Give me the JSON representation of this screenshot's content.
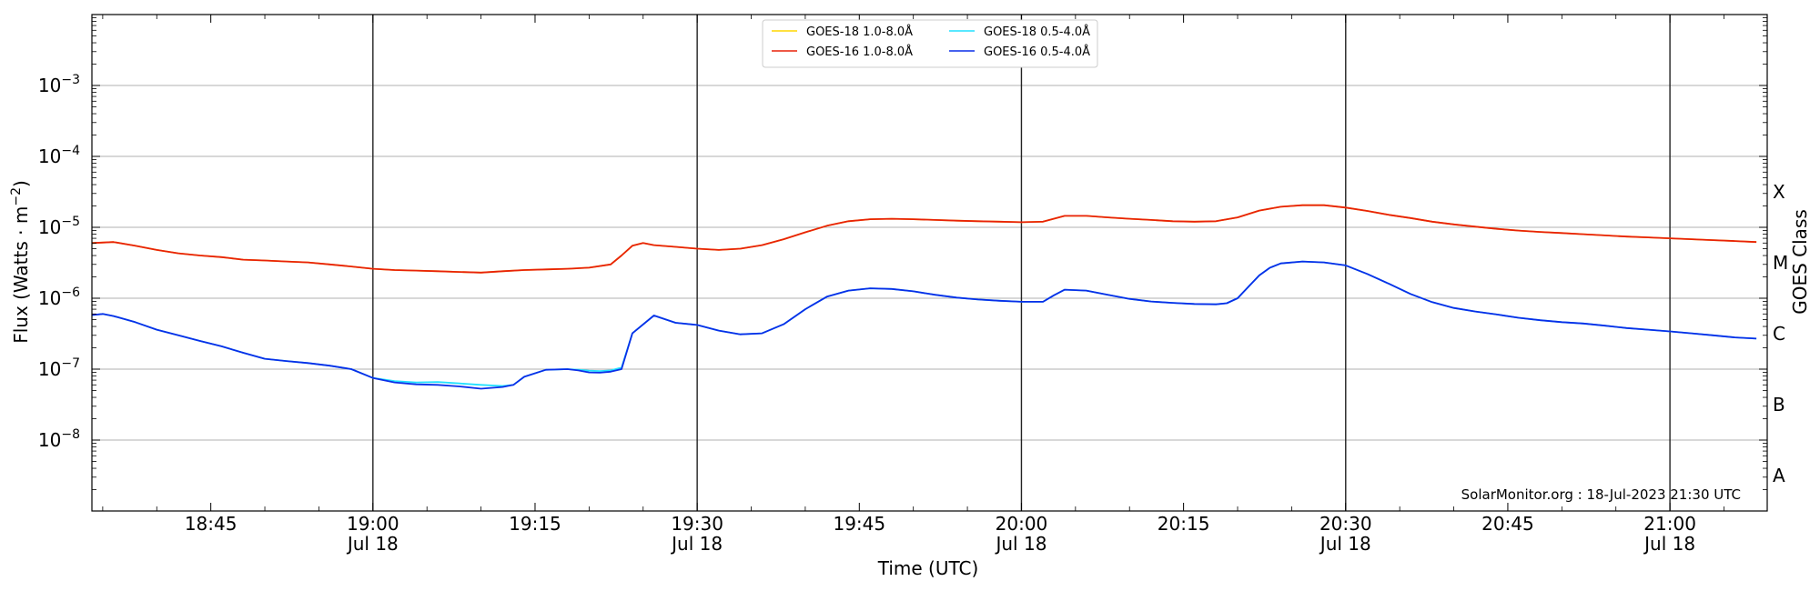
{
  "chart_data": {
    "type": "line",
    "xlabel": "Time (UTC)",
    "ylabel": "Flux (Watts · m",
    "ylabel_sup": "−2",
    "ylabel_close": ")",
    "y2label": "GOES Class",
    "yscale": "log",
    "ylim": [
      1e-09,
      0.01
    ],
    "xlim": [
      "18:34",
      "21:09"
    ],
    "x_ticks": [
      {
        "time": "18:45",
        "label": "18:45",
        "sub": ""
      },
      {
        "time": "19:00",
        "label": "19:00",
        "sub": "Jul 18"
      },
      {
        "time": "19:15",
        "label": "19:15",
        "sub": ""
      },
      {
        "time": "19:30",
        "label": "19:30",
        "sub": "Jul 18"
      },
      {
        "time": "19:45",
        "label": "19:45",
        "sub": ""
      },
      {
        "time": "20:00",
        "label": "20:00",
        "sub": "Jul 18"
      },
      {
        "time": "20:15",
        "label": "20:15",
        "sub": ""
      },
      {
        "time": "20:30",
        "label": "20:30",
        "sub": "Jul 18"
      },
      {
        "time": "20:45",
        "label": "20:45",
        "sub": ""
      },
      {
        "time": "21:00",
        "label": "21:00",
        "sub": "Jul 18"
      }
    ],
    "y_ticks": [
      {
        "exp": -8,
        "label": "10",
        "sup": "−8"
      },
      {
        "exp": -7,
        "label": "10",
        "sup": "−7"
      },
      {
        "exp": -6,
        "label": "10",
        "sup": "−6"
      },
      {
        "exp": -5,
        "label": "10",
        "sup": "−5"
      },
      {
        "exp": -4,
        "label": "10",
        "sup": "−4"
      },
      {
        "exp": -3,
        "label": "10",
        "sup": "−3"
      }
    ],
    "goes_classes": [
      {
        "label": "A",
        "flux": 1e-08
      },
      {
        "label": "B",
        "flux": 1e-07
      },
      {
        "label": "C",
        "flux": 1e-06
      },
      {
        "label": "M",
        "flux": 1e-05
      },
      {
        "label": "X",
        "flux": 0.0001
      }
    ],
    "vertical_lines": [
      "19:00",
      "19:30",
      "20:00",
      "20:30",
      "21:00"
    ],
    "grid": "horizontal",
    "legend_position": "top-center",
    "credit": "SolarMonitor.org : 18-Jul-2023 21:30 UTC",
    "series": [
      {
        "name": "GOES-18 1.0-8.0Å",
        "color": "#FFD700",
        "x": [
          "18:34",
          "18:36",
          "18:38",
          "18:40",
          "18:42",
          "18:44",
          "18:46",
          "18:48",
          "18:50",
          "18:52",
          "18:54",
          "18:56",
          "18:58",
          "19:00",
          "19:02",
          "19:04",
          "19:06",
          "19:08",
          "19:10",
          "19:12",
          "19:14",
          "19:16",
          "19:18",
          "19:20",
          "19:22",
          "19:23",
          "19:24",
          "19:25",
          "19:26",
          "19:28",
          "19:30",
          "19:32",
          "19:34",
          "19:36",
          "19:38",
          "19:40",
          "19:42",
          "19:44",
          "19:46",
          "19:48",
          "19:50",
          "19:52",
          "19:54",
          "19:56",
          "19:58",
          "20:00",
          "20:02",
          "20:04",
          "20:06",
          "20:08",
          "20:10",
          "20:12",
          "20:14",
          "20:16",
          "20:18",
          "20:20",
          "20:22",
          "20:24",
          "20:26",
          "20:28",
          "20:30",
          "20:32",
          "20:34",
          "20:36",
          "20:38",
          "20:40",
          "20:42",
          "20:44",
          "20:46",
          "20:48",
          "20:50",
          "20:52",
          "20:54",
          "20:56",
          "20:58",
          "21:00",
          "21:02",
          "21:04",
          "21:06",
          "21:08"
        ],
        "y": [
          6e-06,
          6.2e-06,
          5.5e-06,
          4.8e-06,
          4.3e-06,
          4e-06,
          3.8e-06,
          3.5e-06,
          3.4e-06,
          3.3e-06,
          3.2e-06,
          3e-06,
          2.8e-06,
          2.6e-06,
          2.5e-06,
          2.45e-06,
          2.4e-06,
          2.35e-06,
          2.3e-06,
          2.4e-06,
          2.5e-06,
          2.55e-06,
          2.6e-06,
          2.7e-06,
          3e-06,
          4e-06,
          5.5e-06,
          6e-06,
          5.6e-06,
          5.3e-06,
          5e-06,
          4.8e-06,
          5e-06,
          5.6e-06,
          6.8e-06,
          8.5e-06,
          1.05e-05,
          1.22e-05,
          1.3e-05,
          1.32e-05,
          1.3e-05,
          1.27e-05,
          1.24e-05,
          1.22e-05,
          1.2e-05,
          1.18e-05,
          1.2e-05,
          1.45e-05,
          1.45e-05,
          1.38e-05,
          1.32e-05,
          1.27e-05,
          1.22e-05,
          1.2e-05,
          1.22e-05,
          1.38e-05,
          1.72e-05,
          1.95e-05,
          2.05e-05,
          2.05e-05,
          1.9e-05,
          1.7e-05,
          1.5e-05,
          1.35e-05,
          1.2e-05,
          1.1e-05,
          1.02e-05,
          9.5e-06,
          9e-06,
          8.6e-06,
          8.3e-06,
          8e-06,
          7.7e-06,
          7.4e-06,
          7.2e-06,
          7e-06,
          6.8e-06,
          6.6e-06,
          6.4e-06,
          6.2e-06
        ]
      },
      {
        "name": "GOES-16 1.0-8.0Å",
        "color": "#e8220a",
        "x": [
          "18:34",
          "18:36",
          "18:38",
          "18:40",
          "18:42",
          "18:44",
          "18:46",
          "18:48",
          "18:50",
          "18:52",
          "18:54",
          "18:56",
          "18:58",
          "19:00",
          "19:02",
          "19:04",
          "19:06",
          "19:08",
          "19:10",
          "19:12",
          "19:14",
          "19:16",
          "19:18",
          "19:20",
          "19:22",
          "19:23",
          "19:24",
          "19:25",
          "19:26",
          "19:28",
          "19:30",
          "19:32",
          "19:34",
          "19:36",
          "19:38",
          "19:40",
          "19:42",
          "19:44",
          "19:46",
          "19:48",
          "19:50",
          "19:52",
          "19:54",
          "19:56",
          "19:58",
          "20:00",
          "20:02",
          "20:04",
          "20:06",
          "20:08",
          "20:10",
          "20:12",
          "20:14",
          "20:16",
          "20:18",
          "20:20",
          "20:22",
          "20:24",
          "20:26",
          "20:28",
          "20:30",
          "20:32",
          "20:34",
          "20:36",
          "20:38",
          "20:40",
          "20:42",
          "20:44",
          "20:46",
          "20:48",
          "20:50",
          "20:52",
          "20:54",
          "20:56",
          "20:58",
          "21:00",
          "21:02",
          "21:04",
          "21:06",
          "21:08"
        ],
        "y": [
          6e-06,
          6.2e-06,
          5.5e-06,
          4.8e-06,
          4.3e-06,
          4e-06,
          3.8e-06,
          3.5e-06,
          3.4e-06,
          3.3e-06,
          3.2e-06,
          3e-06,
          2.8e-06,
          2.6e-06,
          2.5e-06,
          2.45e-06,
          2.4e-06,
          2.35e-06,
          2.3e-06,
          2.4e-06,
          2.5e-06,
          2.55e-06,
          2.6e-06,
          2.7e-06,
          3e-06,
          4e-06,
          5.5e-06,
          6e-06,
          5.6e-06,
          5.3e-06,
          5e-06,
          4.8e-06,
          5e-06,
          5.6e-06,
          6.8e-06,
          8.5e-06,
          1.05e-05,
          1.22e-05,
          1.3e-05,
          1.32e-05,
          1.3e-05,
          1.27e-05,
          1.24e-05,
          1.22e-05,
          1.2e-05,
          1.18e-05,
          1.2e-05,
          1.45e-05,
          1.45e-05,
          1.38e-05,
          1.32e-05,
          1.27e-05,
          1.22e-05,
          1.2e-05,
          1.22e-05,
          1.38e-05,
          1.72e-05,
          1.95e-05,
          2.05e-05,
          2.05e-05,
          1.9e-05,
          1.7e-05,
          1.5e-05,
          1.35e-05,
          1.2e-05,
          1.1e-05,
          1.02e-05,
          9.5e-06,
          9e-06,
          8.6e-06,
          8.3e-06,
          8e-06,
          7.7e-06,
          7.4e-06,
          7.2e-06,
          7e-06,
          6.8e-06,
          6.6e-06,
          6.4e-06,
          6.2e-06
        ]
      },
      {
        "name": "GOES-18 0.5-4.0Å",
        "color": "#22e0ff",
        "x": [
          "18:34",
          "18:35",
          "18:36",
          "18:38",
          "18:40",
          "18:42",
          "18:44",
          "18:46",
          "18:48",
          "18:50",
          "18:52",
          "18:54",
          "18:56",
          "18:58",
          "19:00",
          "19:02",
          "19:04",
          "19:06",
          "19:08",
          "19:10",
          "19:12",
          "19:13",
          "19:14",
          "19:16",
          "19:18",
          "19:19",
          "19:20",
          "19:21",
          "19:22",
          "19:23",
          "19:24",
          "19:26",
          "19:28",
          "19:30",
          "19:32",
          "19:34",
          "19:36",
          "19:38",
          "19:40",
          "19:42",
          "19:44",
          "19:46",
          "19:48",
          "19:50",
          "19:52",
          "19:54",
          "19:56",
          "19:58",
          "20:00",
          "20:02",
          "20:03",
          "20:04",
          "20:06",
          "20:08",
          "20:10",
          "20:12",
          "20:14",
          "20:16",
          "20:18",
          "20:19",
          "20:20",
          "20:21",
          "20:22",
          "20:23",
          "20:24",
          "20:26",
          "20:28",
          "20:30",
          "20:32",
          "20:34",
          "20:36",
          "20:38",
          "20:40",
          "20:42",
          "20:44",
          "20:46",
          "20:48",
          "20:50",
          "20:52",
          "20:54",
          "20:56",
          "20:58",
          "21:00",
          "21:02",
          "21:04",
          "21:06",
          "21:08"
        ],
        "y": [
          5.8e-07,
          6e-07,
          5.6e-07,
          4.6e-07,
          3.6e-07,
          3e-07,
          2.5e-07,
          2.1e-07,
          1.7e-07,
          1.4e-07,
          1.3e-07,
          1.22e-07,
          1.12e-07,
          1e-07,
          7.5e-08,
          6.8e-08,
          6.5e-08,
          6.6e-08,
          6.3e-08,
          6e-08,
          5.8e-08,
          6e-08,
          7.8e-08,
          9.8e-08,
          1e-07,
          9.8e-08,
          9.5e-08,
          9.4e-08,
          9.6e-08,
          1.05e-07,
          3.2e-07,
          5.7e-07,
          4.5e-07,
          4.2e-07,
          3.5e-07,
          3.1e-07,
          3.2e-07,
          4.3e-07,
          7e-07,
          1.05e-06,
          1.28e-06,
          1.38e-06,
          1.35e-06,
          1.25e-06,
          1.12e-06,
          1.02e-06,
          9.6e-07,
          9.2e-07,
          8.9e-07,
          8.9e-07,
          1.1e-06,
          1.32e-06,
          1.28e-06,
          1.12e-06,
          9.8e-07,
          9e-07,
          8.6e-07,
          8.3e-07,
          8.2e-07,
          8.5e-07,
          1e-06,
          1.45e-06,
          2.1e-06,
          2.7e-06,
          3.1e-06,
          3.3e-06,
          3.2e-06,
          2.9e-06,
          2.2e-06,
          1.6e-06,
          1.15e-06,
          8.8e-07,
          7.3e-07,
          6.5e-07,
          5.9e-07,
          5.3e-07,
          4.9e-07,
          4.6e-07,
          4.4e-07,
          4.1e-07,
          3.8e-07,
          3.6e-07,
          3.4e-07,
          3.2e-07,
          3e-07,
          2.8e-07,
          2.7e-07
        ]
      },
      {
        "name": "GOES-16 0.5-4.0Å",
        "color": "#0a2ee8",
        "x": [
          "18:34",
          "18:35",
          "18:36",
          "18:38",
          "18:40",
          "18:42",
          "18:44",
          "18:46",
          "18:48",
          "18:50",
          "18:52",
          "18:54",
          "18:56",
          "18:58",
          "19:00",
          "19:02",
          "19:04",
          "19:06",
          "19:08",
          "19:10",
          "19:12",
          "19:13",
          "19:14",
          "19:16",
          "19:18",
          "19:19",
          "19:20",
          "19:21",
          "19:22",
          "19:23",
          "19:24",
          "19:26",
          "19:28",
          "19:30",
          "19:32",
          "19:34",
          "19:36",
          "19:38",
          "19:40",
          "19:42",
          "19:44",
          "19:46",
          "19:48",
          "19:50",
          "19:52",
          "19:54",
          "19:56",
          "19:58",
          "20:00",
          "20:02",
          "20:03",
          "20:04",
          "20:06",
          "20:08",
          "20:10",
          "20:12",
          "20:14",
          "20:16",
          "20:18",
          "20:19",
          "20:20",
          "20:21",
          "20:22",
          "20:23",
          "20:24",
          "20:26",
          "20:28",
          "20:30",
          "20:32",
          "20:34",
          "20:36",
          "20:38",
          "20:40",
          "20:42",
          "20:44",
          "20:46",
          "20:48",
          "20:50",
          "20:52",
          "20:54",
          "20:56",
          "20:58",
          "21:00",
          "21:02",
          "21:04",
          "21:06",
          "21:08"
        ],
        "y": [
          5.8e-07,
          6e-07,
          5.6e-07,
          4.6e-07,
          3.6e-07,
          3e-07,
          2.5e-07,
          2.1e-07,
          1.7e-07,
          1.4e-07,
          1.3e-07,
          1.22e-07,
          1.12e-07,
          1e-07,
          7.5e-08,
          6.5e-08,
          6.1e-08,
          6e-08,
          5.7e-08,
          5.3e-08,
          5.6e-08,
          6e-08,
          7.8e-08,
          9.8e-08,
          1e-07,
          9.6e-08,
          9e-08,
          8.9e-08,
          9.2e-08,
          1e-07,
          3.2e-07,
          5.7e-07,
          4.5e-07,
          4.2e-07,
          3.5e-07,
          3.1e-07,
          3.2e-07,
          4.3e-07,
          7e-07,
          1.05e-06,
          1.28e-06,
          1.38e-06,
          1.35e-06,
          1.25e-06,
          1.12e-06,
          1.02e-06,
          9.6e-07,
          9.2e-07,
          8.9e-07,
          8.9e-07,
          1.1e-06,
          1.32e-06,
          1.28e-06,
          1.12e-06,
          9.8e-07,
          9e-07,
          8.6e-07,
          8.3e-07,
          8.2e-07,
          8.5e-07,
          1e-06,
          1.45e-06,
          2.1e-06,
          2.7e-06,
          3.1e-06,
          3.3e-06,
          3.2e-06,
          2.9e-06,
          2.2e-06,
          1.6e-06,
          1.15e-06,
          8.8e-07,
          7.3e-07,
          6.5e-07,
          5.9e-07,
          5.3e-07,
          4.9e-07,
          4.6e-07,
          4.4e-07,
          4.1e-07,
          3.8e-07,
          3.6e-07,
          3.4e-07,
          3.2e-07,
          3e-07,
          2.8e-07,
          2.7e-07
        ]
      }
    ]
  }
}
